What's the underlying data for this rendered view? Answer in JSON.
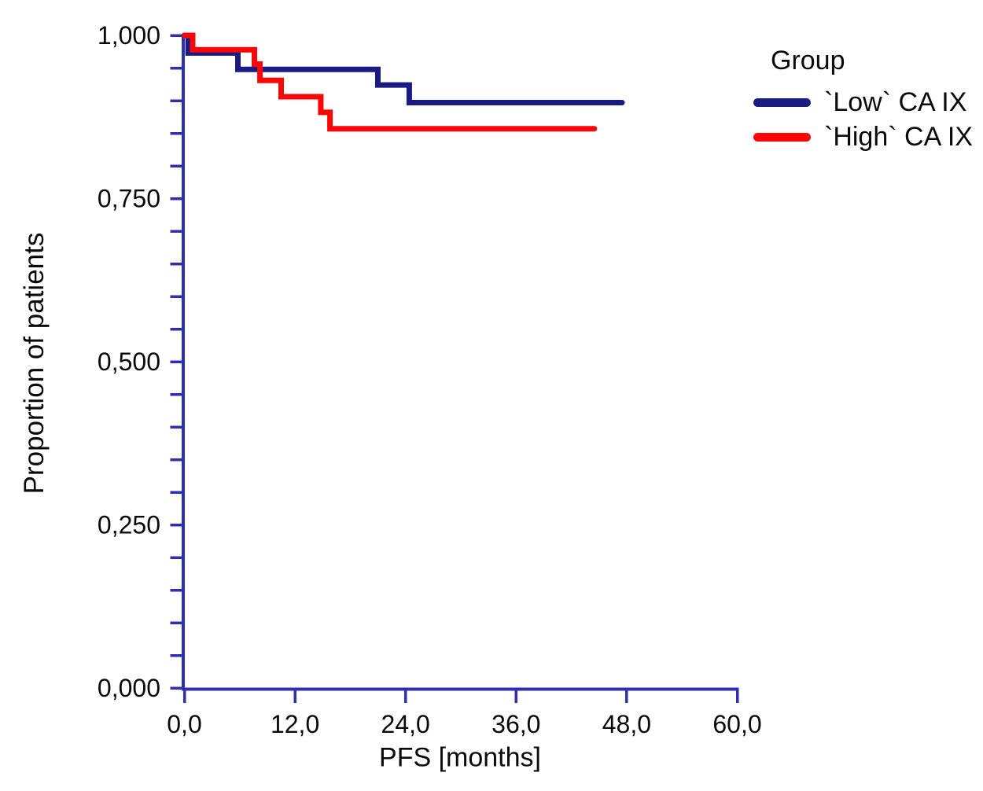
{
  "figure": {
    "background": "#FFFFFF",
    "text_color": "#0A0A0A"
  },
  "chart_data": {
    "type": "line",
    "subtype": "kaplan_meier_step",
    "title": "",
    "xlabel": "PFS [months]",
    "ylabel": "Proportion of patients",
    "xlim": [
      0,
      60
    ],
    "ylim": [
      0,
      1
    ],
    "grid": false,
    "axis_color": "#2F2FB2",
    "x_ticks": {
      "values": [
        0,
        12,
        24,
        36,
        48,
        60
      ],
      "labels": [
        "0,0",
        "12,0",
        "24,0",
        "36,0",
        "48,0",
        "60,0"
      ]
    },
    "y_ticks": {
      "major_values": [
        0,
        0.25,
        0.5,
        0.75,
        1
      ],
      "major_labels": [
        "0,000",
        "0,250",
        "0,500",
        "0,750",
        "1,000"
      ],
      "minor_step": 0.05
    },
    "legend": {
      "title": "Group",
      "position": "top-right"
    },
    "series": [
      {
        "name": "`Low` CA IX",
        "color": "#1A1A84",
        "points": [
          [
            0,
            1.0
          ],
          [
            0.4,
            1.0
          ],
          [
            0.4,
            0.973
          ],
          [
            5.8,
            0.973
          ],
          [
            5.8,
            0.948
          ],
          [
            21.0,
            0.948
          ],
          [
            21.0,
            0.924
          ],
          [
            24.4,
            0.924
          ],
          [
            24.4,
            0.897
          ],
          [
            47.5,
            0.897
          ]
        ]
      },
      {
        "name": "`High` CA IX",
        "color": "#FB0606",
        "points": [
          [
            0,
            1.0
          ],
          [
            0.9,
            1.0
          ],
          [
            0.9,
            0.978
          ],
          [
            7.6,
            0.978
          ],
          [
            7.6,
            0.956
          ],
          [
            8.2,
            0.956
          ],
          [
            8.2,
            0.931
          ],
          [
            10.5,
            0.931
          ],
          [
            10.5,
            0.906
          ],
          [
            14.8,
            0.906
          ],
          [
            14.8,
            0.882
          ],
          [
            15.8,
            0.882
          ],
          [
            15.8,
            0.857
          ],
          [
            44.5,
            0.857
          ]
        ]
      }
    ]
  }
}
